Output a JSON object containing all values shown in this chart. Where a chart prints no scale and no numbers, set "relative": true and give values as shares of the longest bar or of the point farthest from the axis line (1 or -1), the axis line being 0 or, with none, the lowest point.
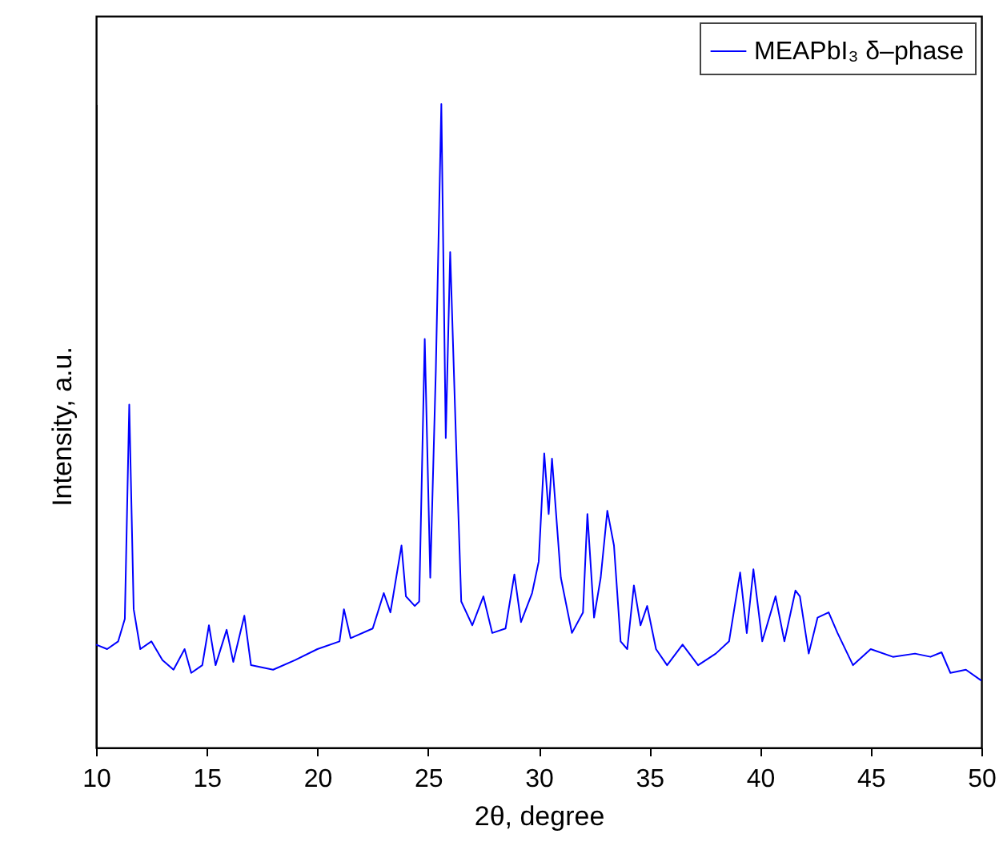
{
  "chart_data": {
    "type": "line",
    "xlabel": "2θ, degree",
    "ylabel": "Intensity, a.u.",
    "relative": true,
    "legend": "top right",
    "xlim": [
      10,
      50
    ],
    "xticks": [
      10,
      15,
      20,
      25,
      30,
      35,
      40,
      45,
      50
    ],
    "grid": false,
    "series": [
      {
        "name": "MEAPbI₃ δ–phase",
        "color": "#0000ff",
        "x": [
          10.0,
          10.5,
          11.0,
          11.3,
          11.5,
          11.7,
          12.0,
          12.5,
          13.0,
          13.5,
          14.0,
          14.3,
          14.8,
          15.1,
          15.4,
          15.9,
          16.2,
          16.7,
          17.0,
          18.0,
          19.0,
          20.0,
          21.0,
          21.2,
          21.5,
          22.5,
          23.0,
          23.3,
          23.8,
          24.0,
          24.4,
          24.6,
          24.85,
          25.1,
          25.35,
          25.6,
          25.8,
          26.0,
          26.3,
          26.5,
          27.0,
          27.5,
          27.9,
          28.5,
          28.9,
          29.2,
          29.7,
          30.0,
          30.25,
          30.45,
          30.6,
          31.0,
          31.5,
          32.0,
          32.2,
          32.5,
          32.8,
          33.1,
          33.4,
          33.7,
          34.0,
          34.3,
          34.6,
          34.9,
          35.3,
          35.8,
          36.5,
          37.2,
          38.0,
          38.6,
          39.1,
          39.4,
          39.7,
          40.1,
          40.7,
          41.1,
          41.6,
          41.8,
          42.2,
          42.6,
          43.1,
          43.5,
          44.2,
          45.0,
          46.0,
          47.0,
          47.7,
          48.2,
          48.6,
          49.3,
          50.0
        ],
        "values": [
          0.16,
          0.153,
          0.165,
          0.2,
          0.533,
          0.215,
          0.153,
          0.165,
          0.136,
          0.121,
          0.153,
          0.116,
          0.128,
          0.19,
          0.128,
          0.183,
          0.133,
          0.205,
          0.128,
          0.121,
          0.136,
          0.153,
          0.165,
          0.215,
          0.17,
          0.185,
          0.24,
          0.21,
          0.314,
          0.235,
          0.22,
          0.227,
          0.635,
          0.264,
          0.585,
          1.0,
          0.481,
          0.77,
          0.437,
          0.227,
          0.19,
          0.235,
          0.178,
          0.185,
          0.269,
          0.195,
          0.24,
          0.289,
          0.457,
          0.363,
          0.449,
          0.264,
          0.178,
          0.21,
          0.363,
          0.202,
          0.264,
          0.368,
          0.314,
          0.165,
          0.153,
          0.252,
          0.19,
          0.22,
          0.153,
          0.128,
          0.16,
          0.128,
          0.146,
          0.165,
          0.272,
          0.178,
          0.277,
          0.165,
          0.235,
          0.165,
          0.244,
          0.235,
          0.146,
          0.202,
          0.21,
          0.178,
          0.128,
          0.153,
          0.141,
          0.146,
          0.141,
          0.148,
          0.116,
          0.121,
          0.104
        ]
      }
    ]
  }
}
